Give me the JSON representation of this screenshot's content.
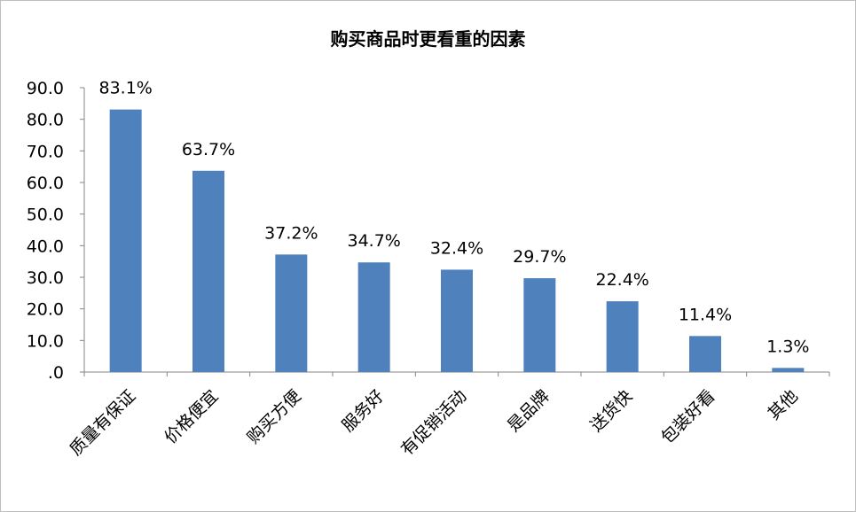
{
  "chart_data": {
    "type": "bar",
    "title": "购买商品时更看重的因素",
    "xlabel": "",
    "ylabel": "",
    "categories": [
      "质量有保证",
      "价格便宜",
      "购买方便",
      "服务好",
      "有促销活动",
      "是品牌",
      "送货快",
      "包装好看",
      "其他"
    ],
    "values": [
      83.1,
      63.7,
      37.2,
      34.7,
      32.4,
      29.7,
      22.4,
      11.4,
      1.3
    ],
    "data_labels": [
      "83.1%",
      "63.7%",
      "37.2%",
      "34.7%",
      "32.4%",
      "29.7%",
      "22.4%",
      "11.4%",
      "1.3%"
    ],
    "ylim": [
      0,
      90
    ],
    "yticks": [
      ".0",
      "10.0",
      "20.0",
      "30.0",
      "40.0",
      "50.0",
      "60.0",
      "70.0",
      "80.0",
      "90.0"
    ],
    "grid": false,
    "legend": "none",
    "bar_color": "#4F81BD"
  }
}
